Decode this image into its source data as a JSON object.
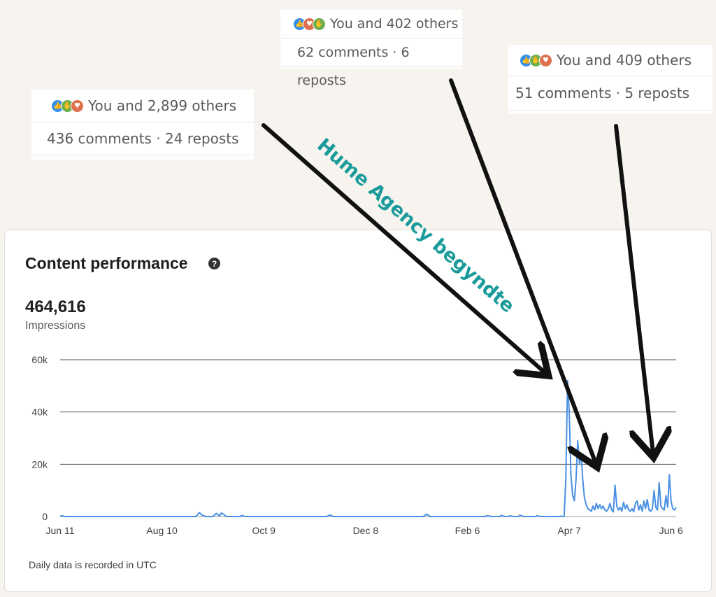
{
  "posts": [
    {
      "likes": "You and 2,899 others",
      "stats": "436 comments · 24 reposts",
      "reactions": [
        "like-icon",
        "celebrate-icon",
        "love-icon"
      ]
    },
    {
      "likes": "You and 402 others",
      "stats": "62 comments · 6 reposts",
      "reactions": [
        "like-icon",
        "love-icon",
        "celebrate-icon"
      ]
    },
    {
      "likes": "You and 409 others",
      "stats": "51 comments · 5 reposts",
      "reactions": [
        "like-icon",
        "celebrate-icon",
        "love-icon"
      ]
    }
  ],
  "annotation": {
    "text": "Hume Agency begyndte",
    "color": "#1a9b9b"
  },
  "panel": {
    "title": "Content performance",
    "help_icon": "question-circle-icon",
    "total_value": "464,616",
    "total_label": "Impressions",
    "footnote": "Daily data is recorded in UTC"
  },
  "chart_data": {
    "type": "line",
    "title": "",
    "xlabel": "",
    "ylabel": "",
    "ylim": [
      0,
      60000
    ],
    "y_ticks": [
      {
        "value": 0,
        "label": "0"
      },
      {
        "value": 20000,
        "label": "20k"
      },
      {
        "value": 40000,
        "label": "40k"
      },
      {
        "value": 60000,
        "label": "60k"
      }
    ],
    "x_ticks": [
      {
        "value": 0,
        "label": "Jun 11"
      },
      {
        "value": 60,
        "label": "Aug 10"
      },
      {
        "value": 120,
        "label": "Oct 9"
      },
      {
        "value": 180,
        "label": "Dec 8"
      },
      {
        "value": 240,
        "label": "Feb 6"
      },
      {
        "value": 300,
        "label": "Apr 7"
      },
      {
        "value": 360,
        "label": "Jun 6"
      }
    ],
    "xlim": [
      0,
      363
    ],
    "grid": true,
    "line_color": "#4a90e2",
    "series": [
      {
        "values": [
          [
            0,
            0
          ],
          [
            1,
            300
          ],
          [
            3,
            0
          ],
          [
            80,
            0
          ],
          [
            82,
            1500
          ],
          [
            84,
            400
          ],
          [
            86,
            0
          ],
          [
            90,
            0
          ],
          [
            92,
            1200
          ],
          [
            94,
            300
          ],
          [
            95,
            1400
          ],
          [
            97,
            500
          ],
          [
            98,
            0
          ],
          [
            106,
            0
          ],
          [
            107,
            400
          ],
          [
            109,
            0
          ],
          [
            157,
            0
          ],
          [
            159,
            600
          ],
          [
            161,
            0
          ],
          [
            214,
            0
          ],
          [
            216,
            900
          ],
          [
            218,
            0
          ],
          [
            250,
            0
          ],
          [
            252,
            300
          ],
          [
            254,
            0
          ],
          [
            259,
            0
          ],
          [
            260,
            400
          ],
          [
            262,
            0
          ],
          [
            264,
            0
          ],
          [
            265,
            300
          ],
          [
            267,
            0
          ],
          [
            270,
            0
          ],
          [
            271,
            500
          ],
          [
            273,
            0
          ],
          [
            280,
            0
          ],
          [
            281,
            300
          ],
          [
            283,
            0
          ],
          [
            294,
            0
          ],
          [
            295,
            150
          ],
          [
            296,
            0
          ],
          [
            297,
            0
          ],
          [
            298,
            14000
          ],
          [
            299,
            52000
          ],
          [
            300,
            40000
          ],
          [
            301,
            16000
          ],
          [
            302,
            8000
          ],
          [
            303,
            6000
          ],
          [
            304,
            14000
          ],
          [
            305,
            29000
          ],
          [
            306,
            20000
          ],
          [
            307,
            24000
          ],
          [
            308,
            14000
          ],
          [
            309,
            7000
          ],
          [
            310,
            4500
          ],
          [
            311,
            3000
          ],
          [
            312,
            2500
          ],
          [
            313,
            2000
          ],
          [
            314,
            4000
          ],
          [
            315,
            2500
          ],
          [
            316,
            5000
          ],
          [
            317,
            3000
          ],
          [
            318,
            4500
          ],
          [
            319,
            3000
          ],
          [
            320,
            4000
          ],
          [
            321,
            2500
          ],
          [
            322,
            2000
          ],
          [
            323,
            3000
          ],
          [
            324,
            5000
          ],
          [
            325,
            2500
          ],
          [
            326,
            1800
          ],
          [
            327,
            12000
          ],
          [
            328,
            4000
          ],
          [
            329,
            2500
          ],
          [
            330,
            3500
          ],
          [
            331,
            2000
          ],
          [
            332,
            5500
          ],
          [
            333,
            3000
          ],
          [
            334,
            4500
          ],
          [
            335,
            2500
          ],
          [
            336,
            2000
          ],
          [
            337,
            3000
          ],
          [
            338,
            1800
          ],
          [
            339,
            5000
          ],
          [
            340,
            6000
          ],
          [
            341,
            2500
          ],
          [
            342,
            4500
          ],
          [
            343,
            2000
          ],
          [
            344,
            6000
          ],
          [
            345,
            3000
          ],
          [
            346,
            6500
          ],
          [
            347,
            2500
          ],
          [
            348,
            2000
          ],
          [
            349,
            3000
          ],
          [
            350,
            10000
          ],
          [
            351,
            3500
          ],
          [
            352,
            2500
          ],
          [
            353,
            13000
          ],
          [
            354,
            4000
          ],
          [
            355,
            3000
          ],
          [
            356,
            2500
          ],
          [
            357,
            8000
          ],
          [
            358,
            3500
          ],
          [
            359,
            16000
          ],
          [
            360,
            6000
          ],
          [
            361,
            3000
          ],
          [
            362,
            2500
          ],
          [
            363,
            3500
          ]
        ]
      }
    ]
  }
}
